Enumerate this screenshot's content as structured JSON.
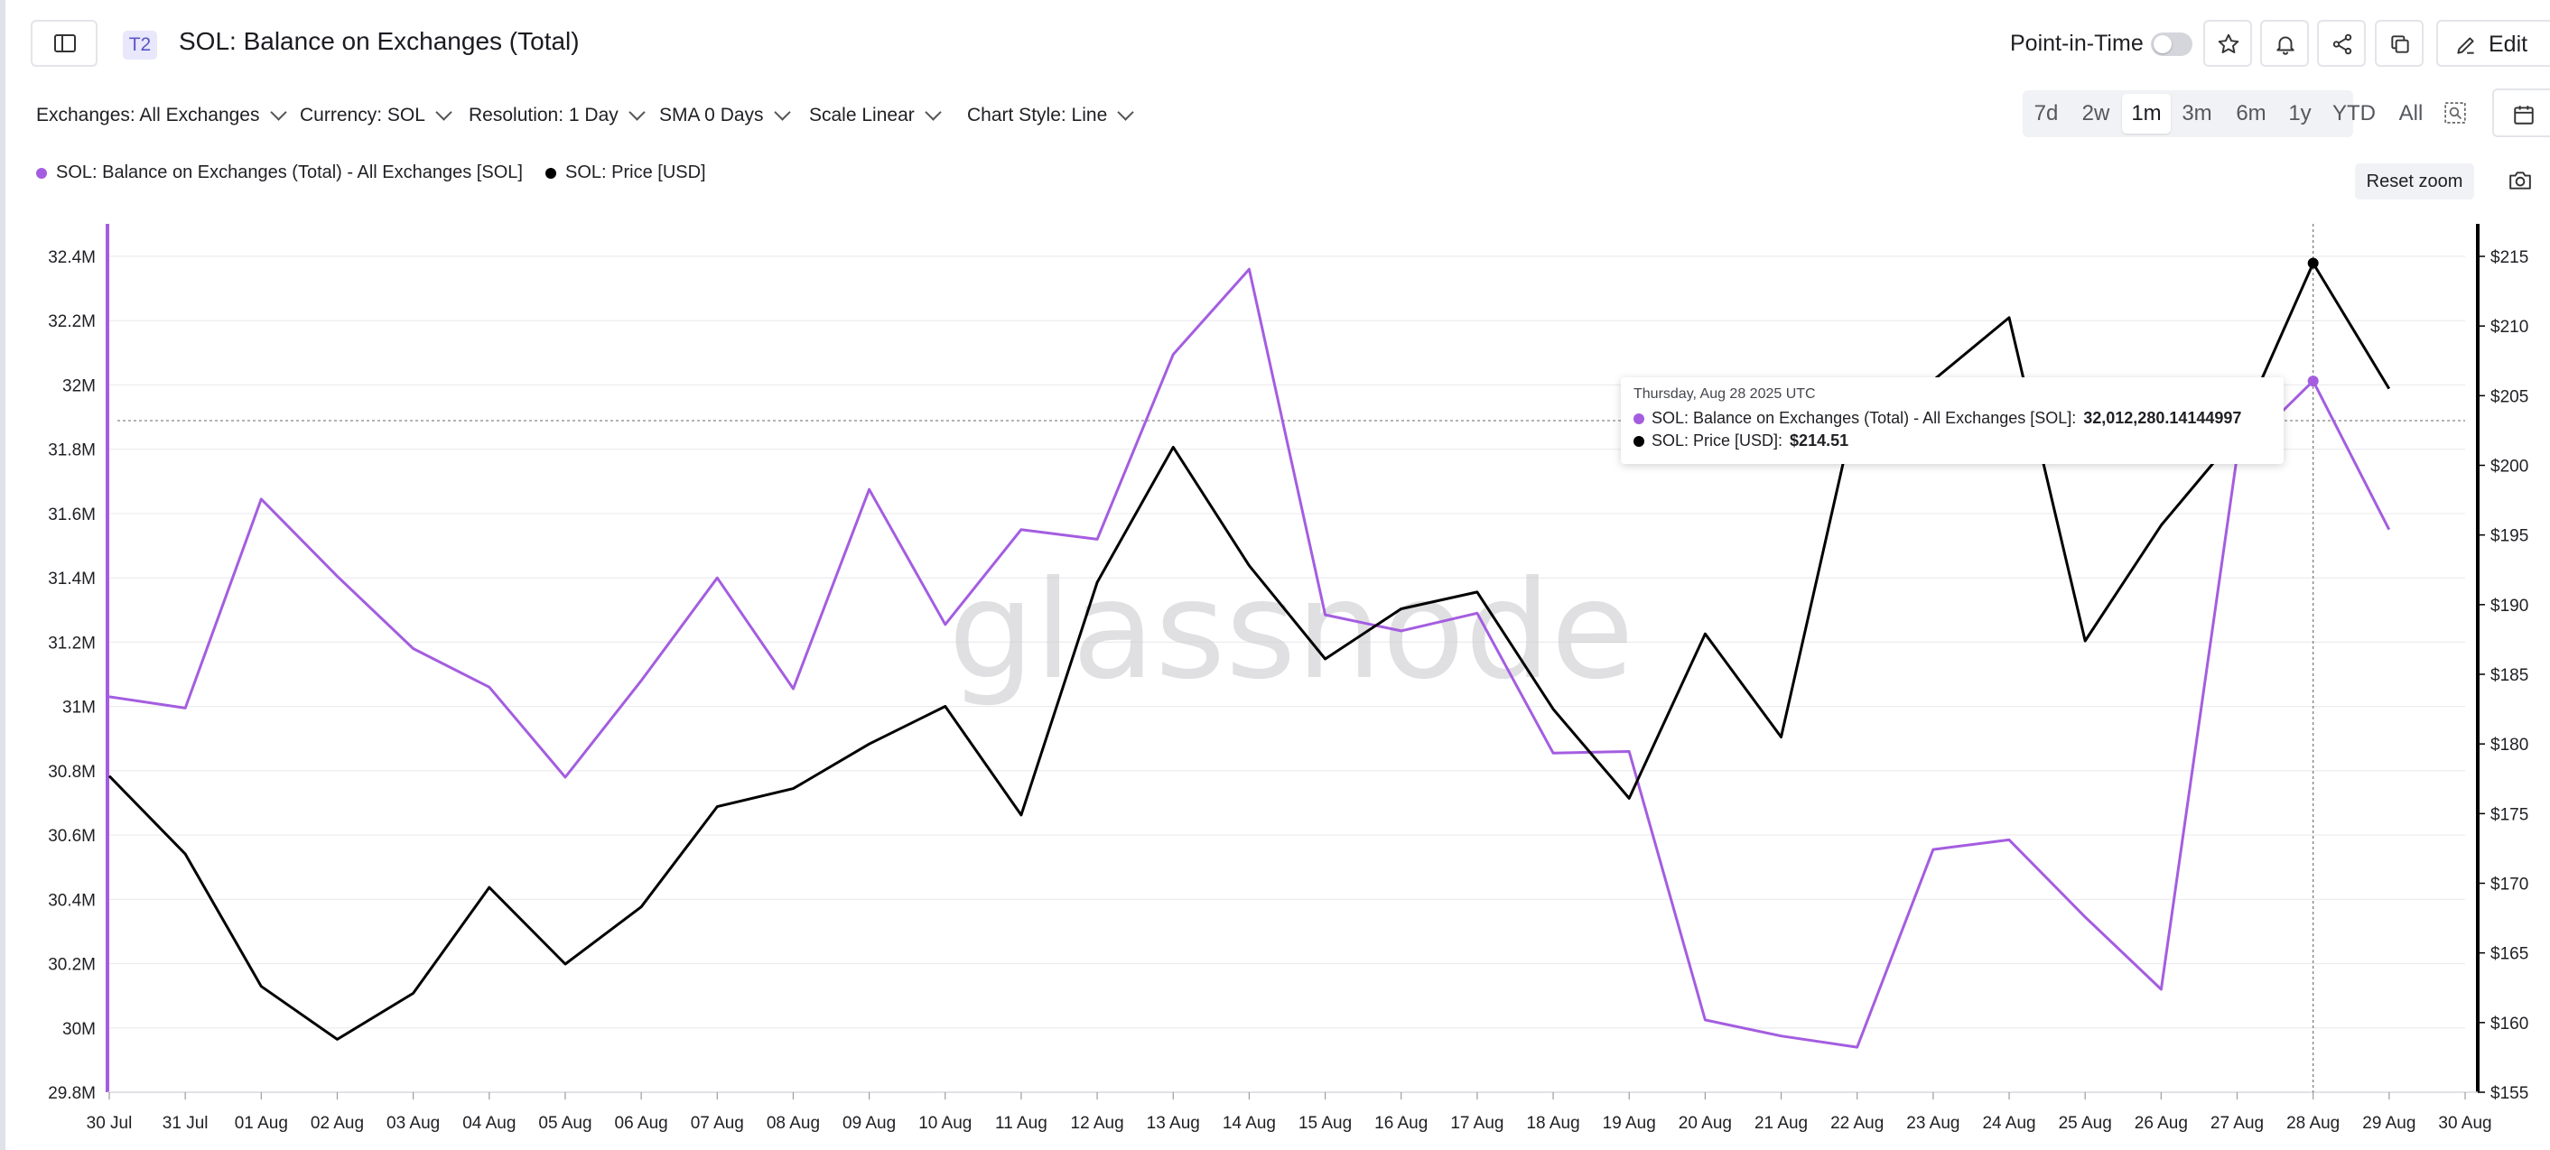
{
  "header": {
    "tag": "T2",
    "title": "SOL: Balance on Exchanges (Total)",
    "point_in_time_label": "Point-in-Time",
    "edit_label": "Edit"
  },
  "controls": {
    "exchanges": "Exchanges: All Exchanges",
    "currency": "Currency: SOL",
    "resolution": "Resolution: 1 Day",
    "sma": "SMA 0 Days",
    "scale": "Scale Linear",
    "chart_style": "Chart Style: Line"
  },
  "ranges": [
    "7d",
    "2w",
    "1m",
    "3m",
    "6m",
    "1y",
    "YTD",
    "All"
  ],
  "active_range": "1m",
  "reset_zoom_label": "Reset zoom",
  "colors": {
    "balance": "#a45de0",
    "price": "#000000",
    "accent": "#5a55c8"
  },
  "tooltip": {
    "date": "Thursday, Aug 28 2025 UTC",
    "balance_label": "SOL: Balance on Exchanges (Total) - All Exchanges [SOL]:",
    "balance_value": "32,012,280.14144997",
    "price_label": "SOL: Price [USD]:",
    "price_value": "$214.51"
  },
  "watermark": "glassnode",
  "chart_data": {
    "type": "line",
    "x": [
      "30 Jul",
      "31 Jul",
      "01 Aug",
      "02 Aug",
      "03 Aug",
      "04 Aug",
      "05 Aug",
      "06 Aug",
      "07 Aug",
      "08 Aug",
      "09 Aug",
      "10 Aug",
      "11 Aug",
      "12 Aug",
      "13 Aug",
      "14 Aug",
      "15 Aug",
      "16 Aug",
      "17 Aug",
      "18 Aug",
      "19 Aug",
      "20 Aug",
      "21 Aug",
      "22 Aug",
      "23 Aug",
      "24 Aug",
      "25 Aug",
      "26 Aug",
      "27 Aug",
      "28 Aug",
      "29 Aug",
      "30 Aug"
    ],
    "series": [
      {
        "name": "SOL: Balance on Exchanges (Total) - All Exchanges [SOL]",
        "axis": "left",
        "values": [
          31030000,
          30995000,
          31645000,
          31405000,
          31180000,
          31060000,
          30780000,
          31080000,
          31400000,
          31055000,
          31675000,
          31255000,
          31550000,
          31520000,
          32095000,
          32360000,
          31285000,
          31235000,
          31290000,
          30855000,
          30860000,
          30025000,
          29975000,
          29940000,
          30555000,
          30585000,
          30345000,
          30120000,
          31780000,
          32012280,
          31550000,
          null
        ]
      },
      {
        "name": "SOL: Price [USD]",
        "axis": "right",
        "values": [
          177.7,
          172.1,
          162.6,
          158.8,
          162.1,
          169.7,
          164.2,
          168.3,
          175.5,
          176.8,
          180.0,
          182.7,
          174.9,
          191.6,
          201.3,
          192.8,
          186.1,
          189.7,
          190.9,
          182.5,
          176.1,
          187.9,
          180.5,
          204.6,
          206.1,
          210.6,
          187.4,
          195.7,
          202.2,
          214.51,
          205.5,
          null
        ]
      }
    ],
    "y_left": {
      "ticks": [
        "29.8M",
        "30M",
        "30.2M",
        "30.4M",
        "30.6M",
        "30.8M",
        "31M",
        "31.2M",
        "31.4M",
        "31.6M",
        "31.8M",
        "32M",
        "32.2M",
        "32.4M"
      ],
      "range": [
        29800000,
        32400000
      ]
    },
    "y_right": {
      "ticks": [
        "$155",
        "$160",
        "$165",
        "$170",
        "$175",
        "$180",
        "$185",
        "$190",
        "$195",
        "$200",
        "$205",
        "$210",
        "$215"
      ],
      "range": [
        155,
        215
      ]
    },
    "grid": true,
    "legend": "top-left"
  }
}
